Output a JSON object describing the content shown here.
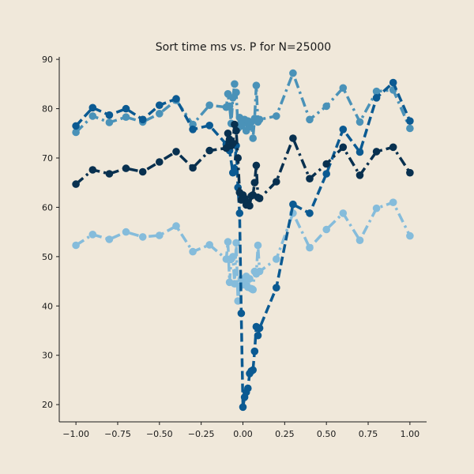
{
  "chart_data": {
    "type": "line",
    "title": "Sort time ms vs. P for N=25000",
    "xlabel": "",
    "ylabel": "",
    "xlim": [
      -1.1,
      1.1
    ],
    "ylim": [
      16.5,
      90.5
    ],
    "x_ticks": [
      "−1.00",
      "−0.75",
      "−0.50",
      "−0.25",
      "0.00",
      "0.25",
      "0.50",
      "0.75",
      "1.00"
    ],
    "y_ticks": [
      "20",
      "30",
      "40",
      "50",
      "60",
      "70",
      "80",
      "90"
    ],
    "grid": false,
    "legend": false,
    "series": [
      {
        "color": "#85bcdb",
        "line_style": "dashdot",
        "points": [
          [
            -1.0,
            52.3
          ],
          [
            -0.9,
            54.5
          ],
          [
            -0.8,
            53.5
          ],
          [
            -0.7,
            55.0
          ],
          [
            -0.6,
            54.0
          ],
          [
            -0.5,
            54.3
          ],
          [
            -0.4,
            56.2
          ],
          [
            -0.3,
            51.0
          ],
          [
            -0.2,
            52.4
          ],
          [
            -0.1,
            49.5
          ],
          [
            -0.09,
            53.0
          ],
          [
            -0.08,
            44.8
          ],
          [
            -0.07,
            49.5
          ],
          [
            -0.06,
            50.0
          ],
          [
            -0.05,
            44.5
          ],
          [
            -0.04,
            52.8
          ],
          [
            -0.03,
            41.0
          ],
          [
            -0.02,
            44.0
          ],
          [
            -0.01,
            45.5
          ],
          [
            0.0,
            44.3
          ],
          [
            0.01,
            44.5
          ],
          [
            0.02,
            46.0
          ],
          [
            0.03,
            43.8
          ],
          [
            0.04,
            45.5
          ],
          [
            0.05,
            43.5
          ],
          [
            0.06,
            43.3
          ],
          [
            0.07,
            47.0
          ],
          [
            0.08,
            46.5
          ],
          [
            0.09,
            52.3
          ],
          [
            0.1,
            47.0
          ],
          [
            0.2,
            49.5
          ],
          [
            0.3,
            58.8
          ],
          [
            0.4,
            51.8
          ],
          [
            0.5,
            55.5
          ],
          [
            0.6,
            58.8
          ],
          [
            0.7,
            53.3
          ],
          [
            0.8,
            59.8
          ],
          [
            0.9,
            61.0
          ],
          [
            1.0,
            54.2
          ]
        ]
      },
      {
        "color": "#4a92b8",
        "line_style": "dashdot",
        "points": [
          [
            -1.0,
            75.2
          ],
          [
            -0.9,
            78.5
          ],
          [
            -0.8,
            77.2
          ],
          [
            -0.7,
            78.3
          ],
          [
            -0.6,
            77.3
          ],
          [
            -0.5,
            79.0
          ],
          [
            -0.4,
            81.7
          ],
          [
            -0.3,
            76.8
          ],
          [
            -0.2,
            80.7
          ],
          [
            -0.1,
            80.3
          ],
          [
            -0.09,
            83.0
          ],
          [
            -0.08,
            80.5
          ],
          [
            -0.07,
            77.0
          ],
          [
            -0.06,
            82.2
          ],
          [
            -0.05,
            85.0
          ],
          [
            -0.04,
            83.3
          ],
          [
            -0.03,
            76.0
          ],
          [
            -0.02,
            78.2
          ],
          [
            -0.01,
            76.5
          ],
          [
            0.0,
            77.0
          ],
          [
            0.01,
            77.8
          ],
          [
            0.02,
            75.5
          ],
          [
            0.03,
            77.5
          ],
          [
            0.04,
            76.3
          ],
          [
            0.05,
            77.3
          ],
          [
            0.06,
            74.0
          ],
          [
            0.07,
            78.0
          ],
          [
            0.08,
            84.7
          ],
          [
            0.09,
            77.3
          ],
          [
            0.1,
            77.8
          ],
          [
            0.2,
            78.5
          ],
          [
            0.3,
            87.2
          ],
          [
            0.4,
            77.8
          ],
          [
            0.5,
            80.5
          ],
          [
            0.6,
            84.2
          ],
          [
            0.7,
            77.3
          ],
          [
            0.8,
            83.5
          ],
          [
            0.9,
            83.8
          ],
          [
            1.0,
            76.0
          ]
        ]
      },
      {
        "color": "#0b5a92",
        "line_style": "dashed",
        "points": [
          [
            -1.0,
            76.5
          ],
          [
            -0.9,
            80.2
          ],
          [
            -0.8,
            78.7
          ],
          [
            -0.7,
            80.0
          ],
          [
            -0.6,
            77.8
          ],
          [
            -0.5,
            80.7
          ],
          [
            -0.4,
            82.0
          ],
          [
            -0.3,
            75.8
          ],
          [
            -0.2,
            76.6
          ],
          [
            -0.1,
            72.8
          ],
          [
            -0.08,
            71.5
          ],
          [
            -0.06,
            67.0
          ],
          [
            -0.05,
            67.8
          ],
          [
            -0.04,
            72.5
          ],
          [
            -0.03,
            64.0
          ],
          [
            -0.02,
            58.8
          ],
          [
            -0.01,
            38.5
          ],
          [
            0.0,
            19.5
          ],
          [
            0.01,
            21.5
          ],
          [
            0.02,
            22.5
          ],
          [
            0.03,
            23.3
          ],
          [
            0.04,
            26.3
          ],
          [
            0.05,
            26.8
          ],
          [
            0.06,
            27.0
          ],
          [
            0.07,
            30.8
          ],
          [
            0.08,
            35.8
          ],
          [
            0.09,
            34.0
          ],
          [
            0.1,
            35.5
          ],
          [
            0.2,
            43.7
          ],
          [
            0.3,
            60.6
          ],
          [
            0.4,
            58.8
          ],
          [
            0.5,
            66.8
          ],
          [
            0.6,
            75.8
          ],
          [
            0.7,
            71.2
          ],
          [
            0.8,
            82.2
          ],
          [
            0.9,
            85.3
          ],
          [
            1.0,
            77.5
          ]
        ]
      },
      {
        "color": "#08304f",
        "line_style": "dashdot",
        "points": [
          [
            -1.0,
            64.7
          ],
          [
            -0.9,
            67.6
          ],
          [
            -0.8,
            66.8
          ],
          [
            -0.7,
            67.9
          ],
          [
            -0.6,
            67.2
          ],
          [
            -0.5,
            69.2
          ],
          [
            -0.4,
            71.3
          ],
          [
            -0.3,
            68.0
          ],
          [
            -0.2,
            71.5
          ],
          [
            -0.1,
            72.0
          ],
          [
            -0.09,
            75.0
          ],
          [
            -0.08,
            73.8
          ],
          [
            -0.07,
            72.5
          ],
          [
            -0.06,
            73.0
          ],
          [
            -0.05,
            76.8
          ],
          [
            -0.04,
            75.5
          ],
          [
            -0.03,
            70.0
          ],
          [
            -0.02,
            63.0
          ],
          [
            -0.01,
            61.5
          ],
          [
            0.0,
            62.5
          ],
          [
            0.01,
            61.8
          ],
          [
            0.02,
            60.5
          ],
          [
            0.03,
            61.0
          ],
          [
            0.04,
            60.3
          ],
          [
            0.05,
            62.3
          ],
          [
            0.06,
            62.5
          ],
          [
            0.07,
            65.0
          ],
          [
            0.08,
            68.5
          ],
          [
            0.09,
            62.0
          ],
          [
            0.1,
            61.8
          ],
          [
            0.2,
            65.2
          ],
          [
            0.3,
            74.0
          ],
          [
            0.4,
            65.8
          ],
          [
            0.5,
            68.8
          ],
          [
            0.6,
            72.2
          ],
          [
            0.7,
            66.5
          ],
          [
            0.8,
            71.3
          ],
          [
            0.9,
            72.2
          ],
          [
            1.0,
            67.0
          ]
        ]
      }
    ]
  }
}
